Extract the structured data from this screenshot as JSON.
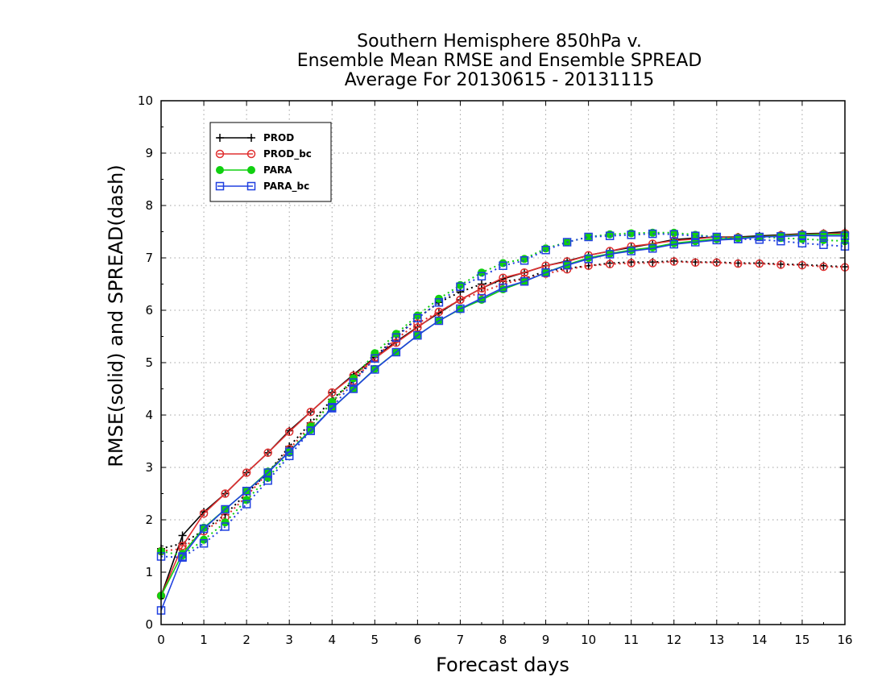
{
  "chart_data": {
    "type": "line",
    "title_lines": [
      "Southern Hemisphere 850hPa v.",
      "Ensemble Mean RMSE and Ensemble SPREAD",
      "Average For 20130615 - 20131115"
    ],
    "xlabel": "Forecast days",
    "ylabel": "RMSE(solid) and SPREAD(dash)",
    "xlim": [
      0,
      16
    ],
    "ylim": [
      0,
      10
    ],
    "xticks": [
      "0",
      "1",
      "2",
      "3",
      "4",
      "5",
      "6",
      "7",
      "8",
      "9",
      "10",
      "11",
      "12",
      "13",
      "14",
      "15",
      "16"
    ],
    "yticks": [
      "0",
      "1",
      "2",
      "3",
      "4",
      "5",
      "6",
      "7",
      "8",
      "9",
      "10"
    ],
    "grid": true,
    "legend_position": "top-left",
    "x": [
      0,
      0.5,
      1,
      1.5,
      2,
      2.5,
      3,
      3.5,
      4,
      4.5,
      5,
      5.5,
      6,
      6.5,
      7,
      7.5,
      8,
      8.5,
      9,
      9.5,
      10,
      10.5,
      11,
      11.5,
      12,
      12.5,
      13,
      13.5,
      14,
      14.5,
      15,
      15.5,
      16
    ],
    "series": [
      {
        "name": "PROD",
        "color": "#000000",
        "marker": "plus",
        "rmse": [
          0.55,
          1.7,
          2.15,
          2.5,
          2.9,
          3.28,
          3.7,
          4.06,
          4.43,
          4.77,
          5.1,
          5.4,
          5.68,
          5.95,
          6.2,
          6.42,
          6.6,
          6.72,
          6.85,
          6.94,
          7.05,
          7.13,
          7.2,
          7.27,
          7.35,
          7.38,
          7.4,
          7.4,
          7.42,
          7.44,
          7.46,
          7.47,
          7.5
        ],
        "spread": [
          1.45,
          1.55,
          1.8,
          2.1,
          2.5,
          2.9,
          3.4,
          3.85,
          4.3,
          4.65,
          5.1,
          5.5,
          5.85,
          6.15,
          6.35,
          6.5,
          6.55,
          6.6,
          6.75,
          6.8,
          6.85,
          6.9,
          6.92,
          6.92,
          6.94,
          6.92,
          6.92,
          6.9,
          6.9,
          6.88,
          6.87,
          6.85,
          6.83
        ]
      },
      {
        "name": "PROD_bc",
        "color": "#e03030",
        "marker": "circle-open",
        "rmse": [
          0.55,
          1.5,
          2.12,
          2.5,
          2.9,
          3.28,
          3.68,
          4.06,
          4.43,
          4.75,
          5.08,
          5.38,
          5.67,
          5.97,
          6.2,
          6.42,
          6.62,
          6.72,
          6.85,
          6.93,
          7.05,
          7.13,
          7.22,
          7.27,
          7.33,
          7.36,
          7.4,
          7.39,
          7.4,
          7.43,
          7.45,
          7.46,
          7.47
        ],
        "spread": [
          1.4,
          1.45,
          1.78,
          2.05,
          2.45,
          2.9,
          3.35,
          3.8,
          4.25,
          4.65,
          5.1,
          5.45,
          5.75,
          5.97,
          6.2,
          6.35,
          6.5,
          6.6,
          6.7,
          6.78,
          6.85,
          6.88,
          6.9,
          6.9,
          6.93,
          6.91,
          6.91,
          6.89,
          6.89,
          6.87,
          6.86,
          6.83,
          6.82
        ]
      },
      {
        "name": "PARA",
        "color": "#10d010",
        "marker": "circle-filled",
        "rmse": [
          0.55,
          1.35,
          1.85,
          2.2,
          2.55,
          2.92,
          3.3,
          3.72,
          4.13,
          4.5,
          4.88,
          5.2,
          5.52,
          5.8,
          6.02,
          6.2,
          6.4,
          6.55,
          6.72,
          6.87,
          7.0,
          7.08,
          7.15,
          7.2,
          7.28,
          7.32,
          7.36,
          7.38,
          7.4,
          7.42,
          7.44,
          7.45,
          7.45
        ],
        "spread": [
          1.4,
          1.32,
          1.62,
          1.95,
          2.38,
          2.8,
          3.28,
          3.78,
          4.25,
          4.7,
          5.18,
          5.55,
          5.9,
          6.22,
          6.48,
          6.72,
          6.9,
          6.98,
          7.18,
          7.3,
          7.4,
          7.45,
          7.47,
          7.48,
          7.48,
          7.44,
          7.4,
          7.38,
          7.4,
          7.38,
          7.36,
          7.34,
          7.32
        ]
      },
      {
        "name": "PARA_bc",
        "color": "#2040e0",
        "marker": "square-open",
        "rmse": [
          0.27,
          1.3,
          1.83,
          2.2,
          2.55,
          2.9,
          3.3,
          3.7,
          4.13,
          4.5,
          4.87,
          5.2,
          5.52,
          5.8,
          6.03,
          6.23,
          6.43,
          6.55,
          6.72,
          6.86,
          6.98,
          7.07,
          7.13,
          7.18,
          7.26,
          7.3,
          7.34,
          7.36,
          7.4,
          7.41,
          7.43,
          7.42,
          7.42
        ],
        "spread": [
          1.3,
          1.28,
          1.55,
          1.87,
          2.3,
          2.75,
          3.22,
          3.7,
          4.15,
          4.62,
          5.08,
          5.48,
          5.85,
          6.15,
          6.45,
          6.65,
          6.85,
          6.95,
          7.15,
          7.3,
          7.4,
          7.42,
          7.44,
          7.46,
          7.45,
          7.42,
          7.4,
          7.36,
          7.35,
          7.32,
          7.28,
          7.25,
          7.22
        ]
      }
    ]
  }
}
